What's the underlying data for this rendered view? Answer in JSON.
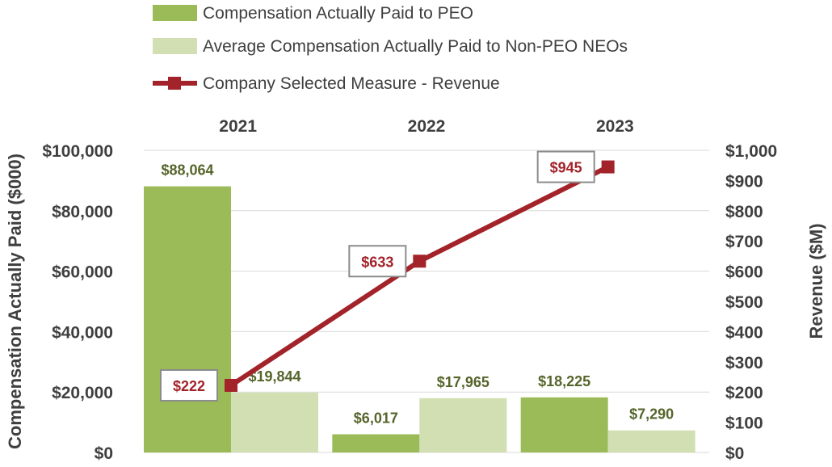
{
  "chart_data": {
    "type": "bar+line",
    "categories": [
      "2021",
      "2022",
      "2023"
    ],
    "series": [
      {
        "name": "Compensation Actually Paid to PEO",
        "type": "bar",
        "axis": "left",
        "values": [
          88064,
          6017,
          18225
        ],
        "labels": [
          "$88,064",
          "$6,017",
          "$18,225"
        ],
        "color": "#9bbb59"
      },
      {
        "name": "Average Compensation Actually Paid to Non-PEO NEOs",
        "type": "bar",
        "axis": "left",
        "values": [
          19844,
          17965,
          7290
        ],
        "labels": [
          "$19,844",
          "$17,965",
          "$7,290"
        ],
        "color": "#d1dfb2"
      },
      {
        "name": "Company Selected Measure - Revenue",
        "type": "line",
        "axis": "right",
        "values": [
          222,
          633,
          945
        ],
        "labels": [
          "$222",
          "$633",
          "$945"
        ],
        "color": "#a3232a"
      }
    ],
    "y_left": {
      "label": "Compensation Actually Paid ($000)",
      "range": [
        0,
        100000
      ],
      "ticks": [
        0,
        20000,
        40000,
        60000,
        80000,
        100000
      ],
      "tick_labels": [
        "$0",
        "$20,000",
        "$40,000",
        "$60,000",
        "$80,000",
        "$100,000"
      ]
    },
    "y_right": {
      "label": "Revenue ($M)",
      "range": [
        0,
        1000
      ],
      "ticks": [
        0,
        100,
        200,
        300,
        400,
        500,
        600,
        700,
        800,
        900,
        1000
      ],
      "tick_labels": [
        "$0",
        "$100",
        "$200",
        "$300",
        "$400",
        "$500",
        "$600",
        "$700",
        "$800",
        "$900",
        "$1,000"
      ]
    },
    "category_labels_position": "top",
    "legend_position": "top",
    "grid": true
  }
}
